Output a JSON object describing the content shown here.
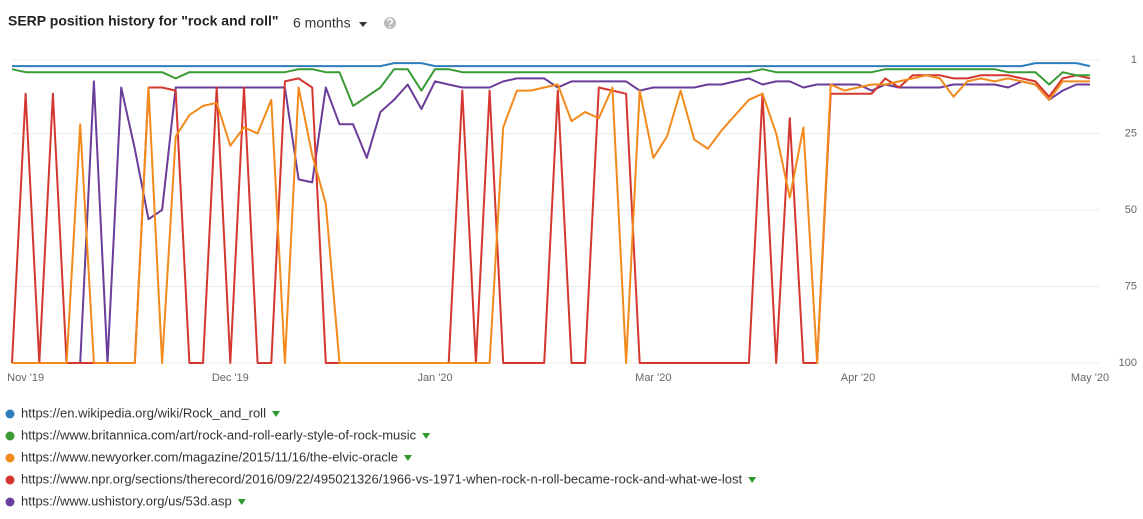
{
  "chart_data": {
    "type": "line",
    "title": "SERP position history for \"rock and roll\"",
    "period": "6 months",
    "categories": [
      null,
      "Nov '19",
      null,
      null,
      null,
      null,
      null,
      null,
      null,
      null,
      null,
      null,
      null,
      null,
      null,
      null,
      "Dec '19",
      null,
      null,
      null,
      null,
      null,
      null,
      null,
      null,
      null,
      null,
      null,
      null,
      null,
      null,
      "Jan '20",
      null,
      null,
      null,
      null,
      null,
      null,
      null,
      null,
      null,
      null,
      null,
      null,
      null,
      null,
      null,
      "Mar '20",
      null,
      null,
      null,
      null,
      null,
      null,
      null,
      null,
      null,
      null,
      null,
      null,
      null,
      null,
      "Apr '20",
      null,
      null,
      null,
      null,
      null,
      null,
      null,
      null,
      null,
      null,
      null,
      null,
      null,
      null,
      null,
      null,
      "May '20"
    ],
    "ylim": [
      1,
      100
    ],
    "y_reversed": true,
    "yticks": [
      1,
      25,
      50,
      75,
      100
    ],
    "grid": true,
    "series": [
      {
        "name": "https://en.wikipedia.org/wiki/Rock_and_roll",
        "color": "#2f7ebc",
        "values": [
          3,
          3,
          3,
          3,
          3,
          3,
          3,
          3,
          3,
          3,
          3,
          3,
          3,
          3,
          3,
          3,
          3,
          3,
          3,
          3,
          3,
          3,
          3,
          3,
          3,
          3,
          3,
          3,
          2,
          2,
          2,
          3,
          3,
          3,
          3,
          3,
          3,
          3,
          3,
          3,
          3,
          3,
          3,
          3,
          3,
          3,
          3,
          3,
          3,
          3,
          3,
          3,
          3,
          3,
          3,
          3,
          3,
          3,
          3,
          3,
          3,
          3,
          3,
          3,
          3,
          3,
          3,
          3,
          3,
          3,
          3,
          3,
          3,
          3,
          3,
          2,
          2,
          2,
          2,
          3
        ]
      },
      {
        "name": "https://www.britannica.com/art/rock-and-roll-early-style-of-rock-music",
        "color": "#3a9a35",
        "values": [
          4,
          5,
          5,
          5,
          5,
          5,
          5,
          5,
          5,
          5,
          5,
          5,
          7,
          5,
          5,
          5,
          5,
          5,
          5,
          5,
          5,
          4,
          4,
          5,
          5,
          16,
          13,
          10,
          4,
          4,
          11,
          4,
          4,
          5,
          5,
          5,
          5,
          5,
          5,
          5,
          5,
          5,
          5,
          5,
          5,
          5,
          5,
          5,
          5,
          5,
          5,
          5,
          5,
          5,
          5,
          4,
          5,
          5,
          5,
          5,
          5,
          5,
          5,
          5,
          4,
          4,
          4,
          4,
          4,
          4,
          4,
          4,
          4,
          5,
          5,
          5,
          9,
          5,
          6,
          6
        ]
      },
      {
        "name": "https://www.newyorker.com/magazine/2015/11/16/the-elvic-oracle",
        "color": "#f28a1c",
        "values": [
          100,
          100,
          100,
          100,
          100,
          22,
          100,
          100,
          100,
          100,
          10,
          100,
          26,
          19,
          16,
          15,
          29,
          23,
          25,
          14,
          100,
          10,
          32,
          48,
          100,
          100,
          100,
          100,
          100,
          100,
          100,
          100,
          100,
          100,
          100,
          100,
          23,
          11,
          11,
          10,
          9,
          21,
          18,
          20,
          10,
          100,
          11,
          33,
          26,
          11,
          27,
          30,
          24,
          19,
          14,
          12,
          25,
          46,
          23,
          100,
          9,
          11,
          10,
          9,
          9,
          8,
          7,
          6,
          7,
          13,
          8,
          7,
          8,
          7,
          8,
          9,
          14,
          8,
          8,
          8
        ]
      },
      {
        "name": "https://www.npr.org/sections/therecord/2016/09/22/495021326/1966-vs-1971-when-rock-n-roll-became-rock-and-what-we-lost",
        "color": "#d4372f",
        "values": [
          100,
          12,
          100,
          12,
          100,
          100,
          100,
          100,
          100,
          100,
          10,
          10,
          11,
          100,
          100,
          10,
          100,
          10,
          100,
          100,
          8,
          7,
          10,
          100,
          100,
          100,
          100,
          100,
          100,
          100,
          100,
          100,
          100,
          11,
          100,
          11,
          100,
          100,
          100,
          100,
          11,
          100,
          100,
          10,
          11,
          12,
          100,
          100,
          100,
          100,
          100,
          100,
          100,
          100,
          100,
          12,
          100,
          20,
          100,
          100,
          12,
          12,
          12,
          12,
          7,
          10,
          6,
          6,
          6,
          7,
          7,
          6,
          6,
          6,
          7,
          8,
          13,
          7,
          6,
          7
        ]
      },
      {
        "name": "https://www.ushistory.org/us/53d.asp",
        "color": "#6a3d9a",
        "values": [
          100,
          100,
          100,
          100,
          100,
          100,
          8,
          100,
          10,
          30,
          53,
          50,
          10,
          10,
          10,
          10,
          10,
          10,
          10,
          10,
          10,
          40,
          41,
          10,
          22,
          22,
          33,
          18,
          14,
          9,
          17,
          8,
          9,
          10,
          10,
          10,
          8,
          7,
          7,
          7,
          10,
          8,
          8,
          8,
          8,
          8,
          11,
          10,
          10,
          10,
          10,
          9,
          9,
          8,
          7,
          9,
          8,
          8,
          10,
          9,
          9,
          9,
          9,
          11,
          9,
          10,
          10,
          10,
          10,
          9,
          9,
          9,
          9,
          10,
          8,
          9,
          14,
          11,
          9,
          9
        ]
      }
    ]
  }
}
